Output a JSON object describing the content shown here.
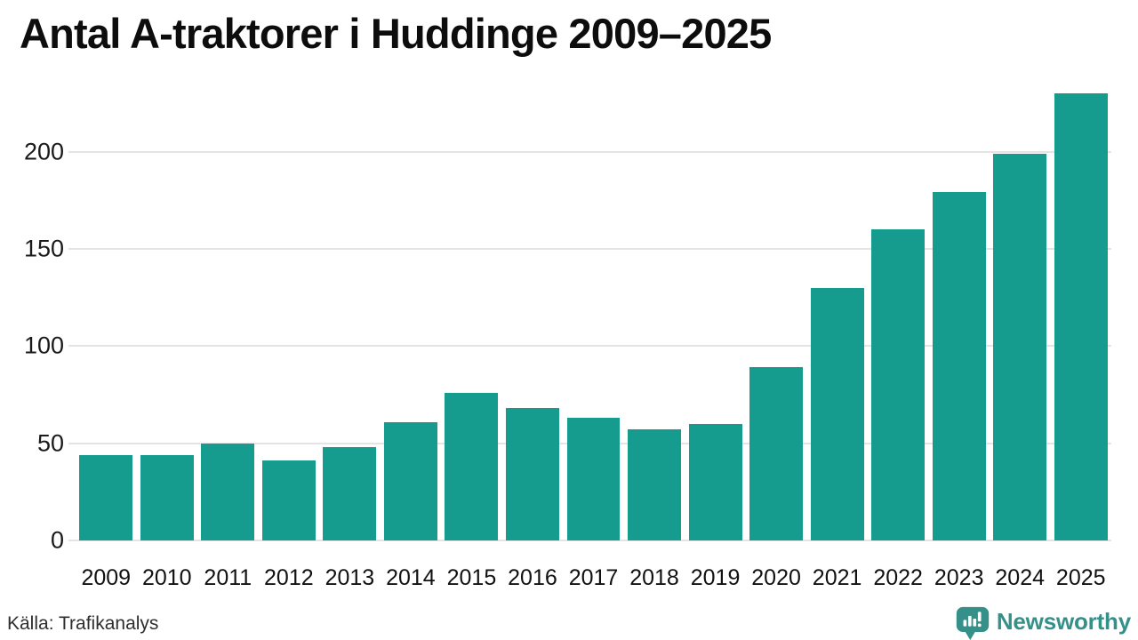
{
  "page": {
    "title": "Antal A-traktorer i Huddinge 2009–2025",
    "source": "Källa: Trafikanalys"
  },
  "branding": {
    "name": "Newsworthy",
    "icon": "newsworthy-bar-chart-bubble-icon",
    "color": "#35908a"
  },
  "colors": {
    "bar": "#169b8f",
    "gridline": "#e4e4e4",
    "title_text": "#0d0d0d",
    "axis_text": "#1a1a1a",
    "source_text": "#2e2e2e"
  },
  "chart_data": {
    "type": "bar",
    "title": "Antal A-traktorer i Huddinge 2009–2025",
    "categories": [
      "2009",
      "2010",
      "2011",
      "2012",
      "2013",
      "2014",
      "2015",
      "2016",
      "2017",
      "2018",
      "2019",
      "2020",
      "2021",
      "2022",
      "2023",
      "2024",
      "2025"
    ],
    "values": [
      44,
      44,
      50,
      41,
      48,
      61,
      76,
      68,
      63,
      57,
      60,
      89,
      130,
      160,
      179,
      199,
      230
    ],
    "xlabel": "",
    "ylabel": "",
    "ylim": [
      0,
      235
    ],
    "yticks": [
      0,
      50,
      100,
      150,
      200
    ],
    "grid": "horizontal-only",
    "legend": "none",
    "bar_color": "#169b8f",
    "source": "Källa: Trafikanalys"
  }
}
